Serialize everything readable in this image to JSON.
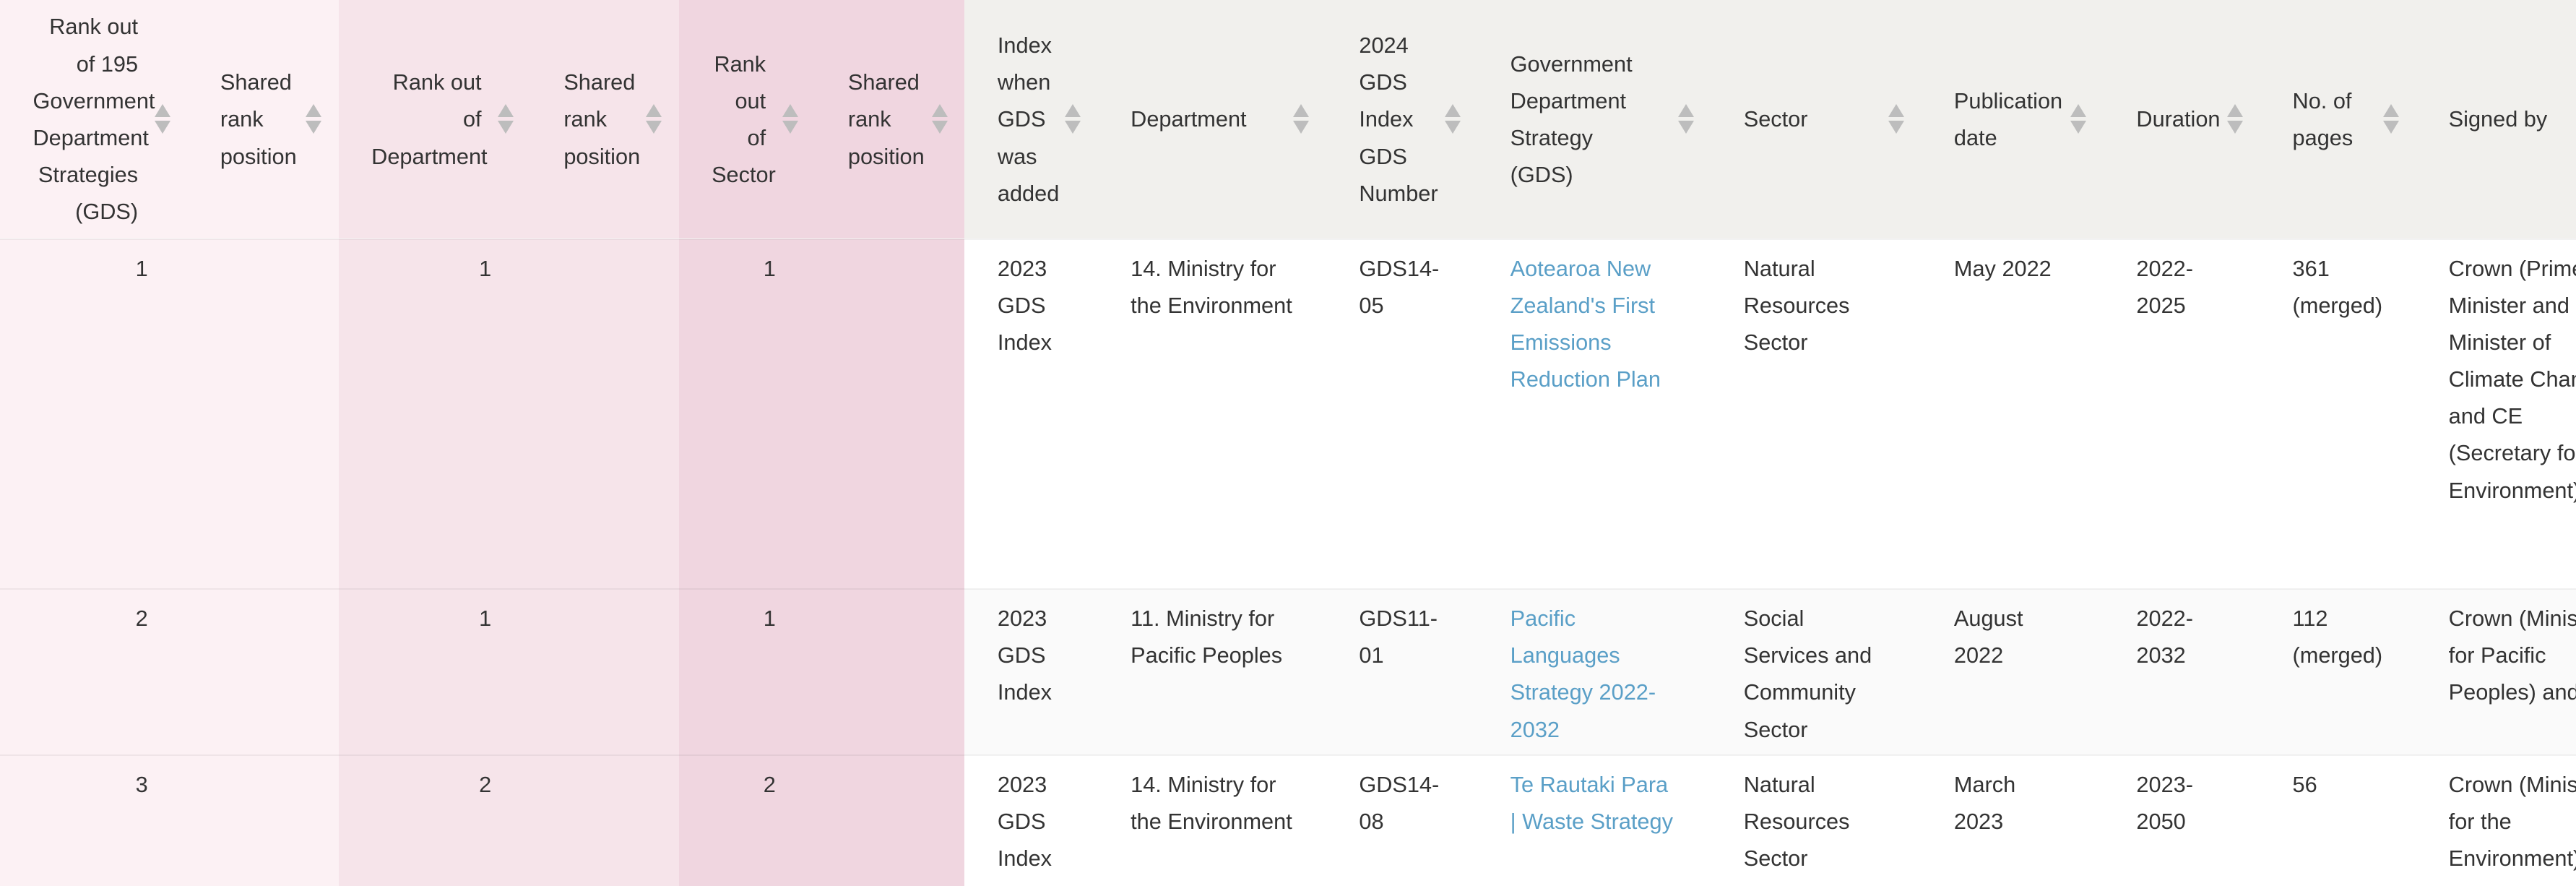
{
  "columns": [
    "Rank out of 195 Government Department Strategies (GDS)",
    "Shared rank position",
    "Rank out of Department",
    "Shared rank position",
    "Rank out of Sector",
    "Shared rank position",
    "Index when GDS was added",
    "Department",
    "2024 GDS Index GDS Number",
    "Government Department Strategy (GDS)",
    "Sector",
    "Publication date",
    "Duration",
    "No. of pages",
    "Signed by"
  ],
  "rows": [
    {
      "rank_overall": "1",
      "shared_overall": "",
      "rank_dept": "1",
      "shared_dept": "",
      "rank_sector": "1",
      "shared_sector": "",
      "index_added": "2023 GDS Index",
      "department": "14. Ministry for the Environment",
      "gds_number": "GDS14-05",
      "strategy": "Aotearoa New Zealand's First Emissions Reduction Plan",
      "sector": "Natural Resources Sector",
      "publication_date": "May 2022",
      "duration": "2022-2025",
      "pages": "361 (merged)",
      "signed_by": "Crown (Prime Minister and Minister of Climate Change) and CE (Secretary for the Environment)"
    },
    {
      "rank_overall": "2",
      "shared_overall": "",
      "rank_dept": "1",
      "shared_dept": "",
      "rank_sector": "1",
      "shared_sector": "",
      "index_added": "2023 GDS Index",
      "department": "11. Ministry for Pacific Peoples",
      "gds_number": "GDS11-01",
      "strategy": "Pacific Languages Strategy 2022-2032",
      "sector": "Social Services and Community Sector",
      "publication_date": "August 2022",
      "duration": "2022-2032",
      "pages": "112 (merged)",
      "signed_by": "Crown (Minister for Pacific Peoples) and CE"
    },
    {
      "rank_overall": "3",
      "shared_overall": "",
      "rank_dept": "2",
      "shared_dept": "",
      "rank_sector": "2",
      "shared_sector": "",
      "index_added": "2023 GDS Index",
      "department": "14. Ministry for the Environment",
      "gds_number": "GDS14-08",
      "strategy": "Te Rautaki Para | Waste Strategy",
      "sector": "Natural Resources Sector",
      "publication_date": "March 2023",
      "duration": "2023-2050",
      "pages": "56",
      "signed_by": "Crown (Minister for the Environment)"
    }
  ],
  "colors": {
    "link": "#5a9fc7",
    "group1_bg": "#fcf1f4",
    "group2_bg": "#f6e4ea",
    "group3_bg": "#f0d6e0",
    "header_bg": "#f1f0ed"
  }
}
